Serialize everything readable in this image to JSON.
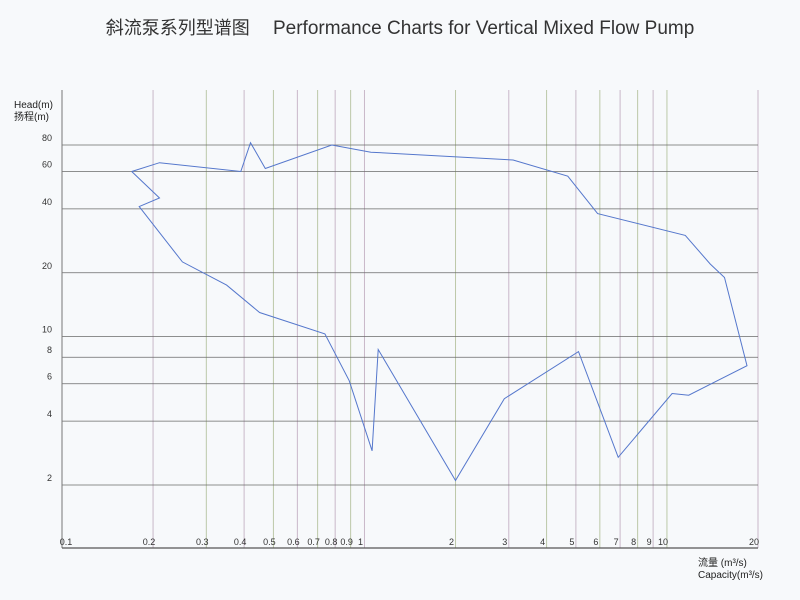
{
  "title_cn": "斜流泵系列型谱图",
  "title_en": "Performance Charts for Vertical Mixed Flow Pump",
  "chart_data": {
    "type": "line",
    "title": "Performance Charts for Vertical Mixed Flow Pump",
    "ylabel_en": "Head(m)",
    "ylabel_cn": "扬程(m)",
    "xlabel_cn": "流量 (m³/s)",
    "xlabel_en": "Capacity(m³/s)",
    "x_scale": "log",
    "y_scale": "log",
    "xlim": [
      0.1,
      20
    ],
    "ylim": [
      2,
      80
    ],
    "grid": true,
    "x_ticks": [
      0.1,
      0.2,
      0.3,
      0.4,
      0.5,
      0.6,
      0.7,
      0.8,
      0.9,
      1,
      2,
      3,
      4,
      5,
      6,
      7,
      8,
      9,
      10,
      20
    ],
    "x_tick_labels": [
      "0.1",
      "0.2",
      "0.3",
      "0.4",
      "0.5",
      "0.6",
      "0.7",
      "0.8",
      "0.9",
      "1",
      "2",
      "3",
      "4",
      "5",
      "6",
      "7",
      "8",
      "9",
      "10",
      "20"
    ],
    "y_ticks": [
      2,
      4,
      6,
      8,
      10,
      20,
      40,
      60,
      80
    ],
    "y_tick_labels": [
      "2",
      "4",
      "6",
      "8",
      "10",
      "20",
      "40",
      "60",
      "80"
    ],
    "series": [
      {
        "color": "#5577cc",
        "points": [
          [
            0.17,
            60
          ],
          [
            0.21,
            66
          ],
          [
            0.39,
            60
          ],
          [
            0.42,
            82
          ],
          [
            0.47,
            62
          ],
          [
            0.78,
            80
          ],
          [
            1.05,
            74
          ],
          [
            3.1,
            68
          ],
          [
            4.7,
            57
          ],
          [
            5.9,
            38
          ],
          [
            11.5,
            30
          ],
          [
            13.9,
            22
          ],
          [
            15.5,
            19
          ],
          [
            18.4,
            7.3
          ],
          [
            11.8,
            5.3
          ],
          [
            10.4,
            5.4
          ],
          [
            6.9,
            2.7
          ],
          [
            5.1,
            8.5
          ],
          [
            2.9,
            5.1
          ],
          [
            2.0,
            2.1
          ],
          [
            1.11,
            8.7
          ],
          [
            1.06,
            2.9
          ],
          [
            0.89,
            6.2
          ],
          [
            0.74,
            10.3
          ],
          [
            0.45,
            13
          ],
          [
            0.35,
            17.5
          ],
          [
            0.25,
            22.5
          ],
          [
            0.18,
            41
          ],
          [
            0.21,
            45
          ],
          [
            0.17,
            60
          ]
        ]
      }
    ]
  }
}
